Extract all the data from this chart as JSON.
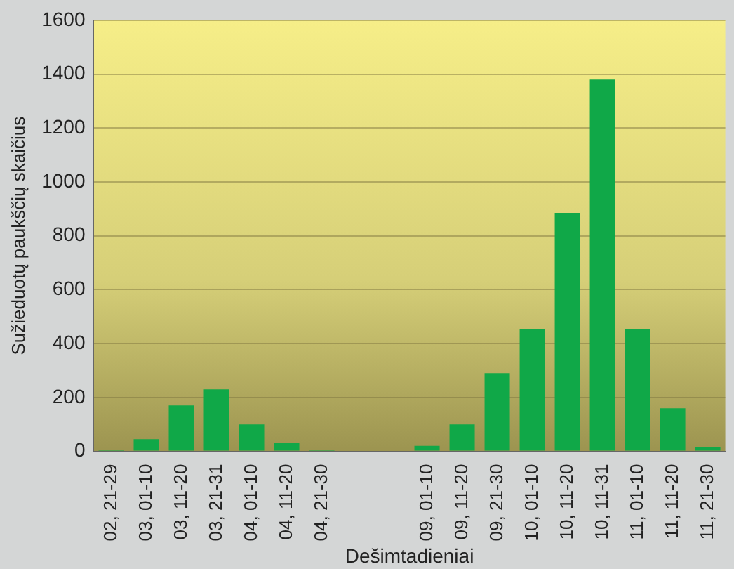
{
  "chart_data": {
    "type": "bar",
    "xlabel": "Dešimtadieniai",
    "ylabel": "Sužieduotų paukščių skaičius",
    "categories": [
      "02, 21-29",
      "03, 01-10",
      "03, 11-20",
      "03, 21-31",
      "04, 01-10",
      "04, 11-20",
      "04, 21-30",
      null,
      null,
      "09, 01-10",
      "09, 11-20",
      "09, 21-30",
      "10, 01-10",
      "10, 11-20",
      "10, 11-31",
      "11, 01-10",
      "11, 11-20",
      "11, 21-30"
    ],
    "values": [
      5,
      45,
      170,
      230,
      100,
      30,
      5,
      null,
      null,
      20,
      100,
      290,
      455,
      885,
      1380,
      455,
      160,
      15
    ],
    "color": "#10a848",
    "ylim": [
      0,
      1600
    ],
    "yticks": [
      0,
      200,
      400,
      600,
      800,
      1000,
      1200,
      1400,
      1600
    ],
    "grid": "y"
  }
}
